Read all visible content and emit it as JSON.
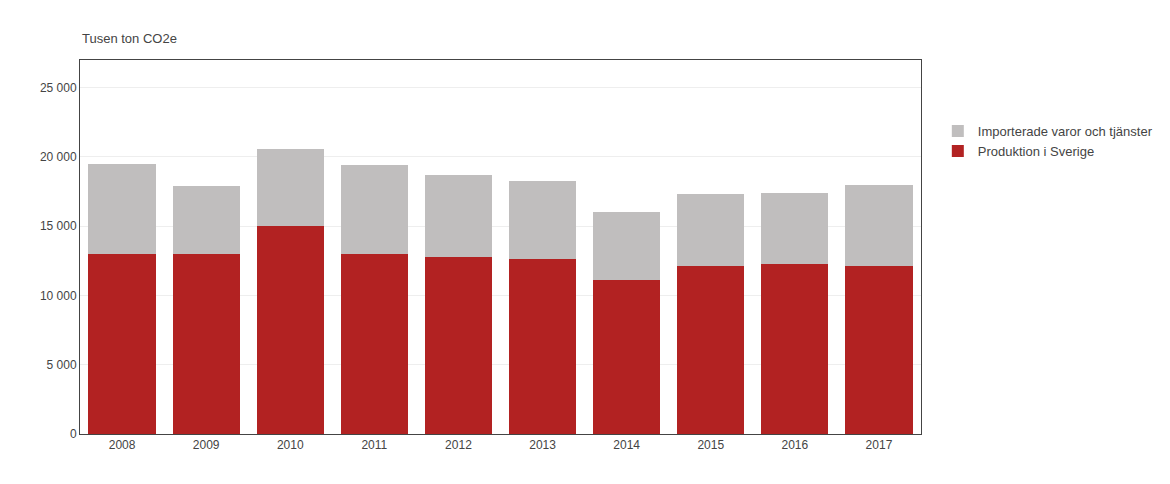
{
  "chart_data": {
    "type": "bar",
    "stacked": true,
    "ylabel": "Tusen ton CO2e",
    "categories": [
      "2008",
      "2009",
      "2010",
      "2011",
      "2012",
      "2013",
      "2014",
      "2015",
      "2016",
      "2017"
    ],
    "series": [
      {
        "name": "Produktion i Sverige",
        "color": "#b22222",
        "values": [
          13000,
          13000,
          15000,
          13000,
          12800,
          12600,
          11100,
          12100,
          12300,
          12100
        ]
      },
      {
        "name": "Importerade varor och tjänster",
        "color": "#c0bebe",
        "values": [
          6500,
          4900,
          5600,
          6400,
          5900,
          5700,
          4900,
          5200,
          5100,
          5900
        ]
      }
    ],
    "ylim": [
      0,
      27000
    ],
    "yticks": [
      0,
      {
        "value": 5000,
        "label": "5 000"
      },
      {
        "value": 10000,
        "label": "10 000"
      },
      {
        "value": 15000,
        "label": "15 000"
      },
      {
        "value": 20000,
        "label": "20 000"
      },
      {
        "value": 25000,
        "label": "25 000"
      }
    ],
    "grid": true,
    "legend": "right"
  }
}
